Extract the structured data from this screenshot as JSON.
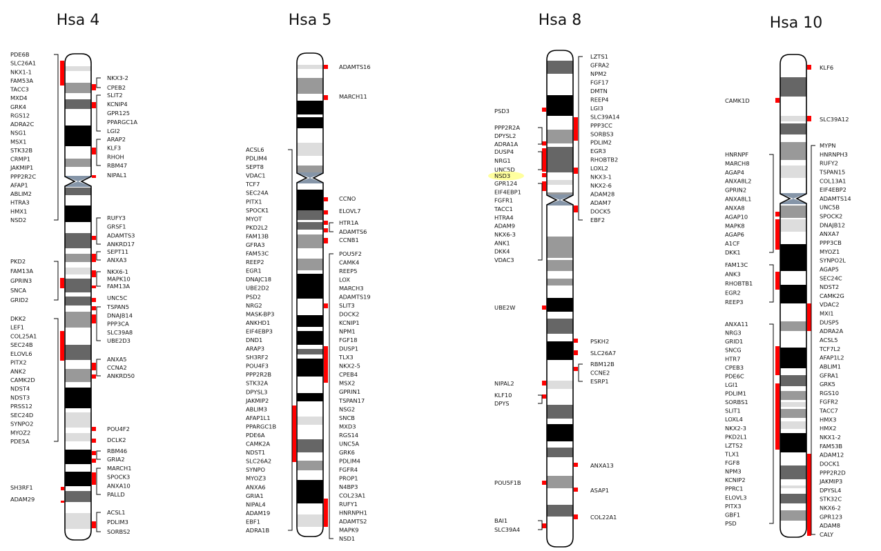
{
  "colors": {
    "band_black": "#000000",
    "band_dark": "#666666",
    "band_medium": "#999999",
    "band_light": "#dddddd",
    "centromere": "#8595a8",
    "marker": "#ff0000",
    "highlight": "#ffff9e"
  },
  "highlighted_gene": "NSD3",
  "chromosomes": [
    {
      "title": "Hsa 4",
      "left_groups": [
        {
          "genes": [
            "PDE6B",
            "SLC26A1",
            "NKX1-1",
            "FAM53A",
            "TACC3",
            "MXD4",
            "GRK4",
            "RGS12",
            "ADRA2C",
            "NSG1",
            "MSX1",
            "STK32B",
            "CRMP1",
            "JAKMIP1",
            "PPP2R2C",
            "AFAP1",
            "ABLIM2",
            "HTRA3",
            "HMX1",
            "NSD2"
          ]
        },
        {
          "genes": [
            "PKD2",
            "FAM13A",
            "GPRIN3",
            "SNCA",
            "GRID2"
          ]
        },
        {
          "genes": [
            "DKK2",
            "LEF1",
            "COL25A1",
            "SEC24B",
            "ELOVL6",
            "PITX2",
            "ANK2",
            "CAMK2D",
            "NDST4",
            "NDST3",
            "PRSS12",
            "SEC24D",
            "SYNPO2",
            "MYOZ2",
            "PDE5A"
          ]
        },
        {
          "genes": [
            "SH3RF1"
          ]
        },
        {
          "genes": [
            "ADAM29"
          ]
        }
      ],
      "right_groups": [
        {
          "genes": [
            "NKX3-2",
            "CPEB2"
          ]
        },
        {
          "genes": [
            "SLIT2",
            "KCNIP4",
            "GPR125",
            "PPARGC1A",
            "LGI2"
          ]
        },
        {
          "genes": [
            "ARAP2",
            "KLF3",
            "RHOH",
            "RBM47"
          ]
        },
        {
          "genes": [
            "NIPAL1"
          ]
        },
        {
          "genes": [
            "RUFY3",
            "GRSF1",
            "ADAMTS3",
            "ANKRD17"
          ]
        },
        {
          "genes": [
            "SEPT11",
            "ANXA3"
          ]
        },
        {
          "genes": [
            "NKX6-1",
            "MAPK10",
            "FAM13A"
          ]
        },
        {
          "genes": [
            "UNC5C"
          ]
        },
        {
          "genes": [
            "TSPAN5",
            "DNAJB14",
            "PPP3CA",
            "SLC39A8",
            "UBE2D3"
          ]
        },
        {
          "genes": [
            "ANXA5",
            "CCNA2",
            "ANKRD50"
          ]
        },
        {
          "genes": [
            "POU4F2"
          ]
        },
        {
          "genes": [
            "DCLK2"
          ]
        },
        {
          "genes": [
            "RBM46",
            "GRIA2"
          ]
        },
        {
          "genes": [
            "MARCH1",
            "SPOCK3",
            "ANXA10",
            "PALLD"
          ]
        },
        {
          "genes": [
            "ACSL1",
            "PDLIM3",
            "SORBS2"
          ]
        }
      ]
    },
    {
      "title": "Hsa 5",
      "left_groups": [
        {
          "genes": [
            "ACSL6",
            "PDLIM4",
            "SEPT8",
            "VDAC1",
            "TCF7",
            "SEC24A",
            "PITX1",
            "SPOCK1",
            "MYOT",
            "PKD2L2",
            "FAM13B",
            "GFRA3",
            "FAM53C",
            "REEP2",
            "EGR1",
            "DNAJC18",
            "UBE2D2",
            "PSD2",
            "NRG2",
            "MASK-BP3",
            "ANKHD1",
            "EIF4EBP3",
            "DND1",
            "ARAP3",
            "SH3RF2",
            "POU4F3",
            "PPP2R2B",
            "STK32A",
            "DPYSL3",
            "JAKMIP2",
            "ABLIM3",
            "AFAP1L1",
            "PPARGC1B",
            "PDE6A",
            "CAMK2A",
            "NDST1",
            "SLC26A2",
            "SYNPO",
            "MYOZ3",
            "ANXA6",
            "GRIA1",
            "NIPAL4",
            "ADAM19",
            "EBF1",
            "ADRA1B"
          ]
        }
      ],
      "right_groups": [
        {
          "genes": [
            "ADAMTS16"
          ]
        },
        {
          "genes": [
            "MARCH11"
          ]
        },
        {
          "genes": [
            "CCNO"
          ]
        },
        {
          "genes": [
            "ELOVL7"
          ]
        },
        {
          "genes": [
            "HTR1A",
            "ADAMTS6"
          ]
        },
        {
          "genes": [
            "CCNB1"
          ]
        },
        {
          "genes": [
            "POU5F2",
            "CAMK4",
            "REEP5",
            "LOX",
            "MARCH3",
            "ADAMTS19",
            "SLIT3",
            "DOCK2",
            "KCNIP1",
            "NPM1",
            "FGF18",
            "DUSP1",
            "TLX3",
            "NKX2-5",
            "CPEB4",
            "MSX2",
            "GPRIN1",
            "TSPAN17",
            "NSG2",
            "SNCB",
            "MXD3",
            "RGS14",
            "UNC5A",
            "GRK6",
            "PDLIM4",
            "FGFR4",
            "PROP1",
            "N4BP3",
            "COL23A1",
            "RUFY1",
            "HNRNPH1",
            "ADAMTS2",
            "MAPK9",
            "NSD1"
          ]
        }
      ]
    },
    {
      "title": "Hsa 8",
      "left_groups": [
        {
          "genes": [
            "PSD3"
          ]
        },
        {
          "genes": [
            "PPP2R2A",
            "DPYSL2",
            "ADRA1A"
          ]
        },
        {
          "genes": [
            "DUSP4",
            "NRG1",
            "UNC5D"
          ]
        },
        {
          "genes": [
            "NSD3"
          ]
        },
        {
          "genes": [
            "GPR124",
            "EIF4EBP1",
            "FGFR1",
            "TACC1",
            "HTRA4",
            "ADAM9",
            "NKX6-3",
            "ANK1",
            "DKK4",
            "VDAC3"
          ]
        },
        {
          "genes": [
            "UBE2W"
          ]
        },
        {
          "genes": [
            "NIPAL2"
          ]
        },
        {
          "genes": [
            "KLF10",
            "DPYS"
          ]
        },
        {
          "genes": [
            "POU5F1B"
          ]
        },
        {
          "genes": [
            "BAI1",
            "SLC39A4"
          ]
        }
      ],
      "right_groups": [
        {
          "genes": [
            "LZTS1",
            "GFRA2",
            "NPM2",
            "FGF17",
            "DMTN",
            "REEP4",
            "LGI3",
            "SLC39A14",
            "PPP3CC",
            "SORBS3",
            "PDLIM2",
            "EGR3",
            "RHOBTB2",
            "LOXL2",
            "NKX3-1",
            "NKX2-6",
            "ADAM28",
            "ADAM7",
            "DOCK5",
            "EBF2"
          ]
        },
        {
          "genes": [
            "PSKH2"
          ]
        },
        {
          "genes": [
            "SLC26A7"
          ]
        },
        {
          "genes": [
            "RBM12B",
            "CCNE2",
            "ESRP1"
          ]
        },
        {
          "genes": [
            "ANXA13"
          ]
        },
        {
          "genes": [
            "ASAP1"
          ]
        },
        {
          "genes": [
            "COL22A1"
          ]
        }
      ]
    },
    {
      "title": "Hsa 10",
      "left_groups": [
        {
          "genes": [
            "CAMK1D"
          ]
        },
        {
          "genes": [
            "HNRNPF",
            "MARCH8",
            "AGAP4",
            "ANXA8L2",
            "GPRIN2",
            "ANXA8L1",
            "ANXA8",
            "AGAP10",
            "MAPK8",
            "AGAP6",
            "A1CF",
            "DKK1"
          ]
        },
        {
          "genes": [
            "FAM13C",
            "ANK3",
            "RHOBTB1",
            "EGR2",
            "REEP3"
          ]
        },
        {
          "genes": [
            "ANXA11",
            "NRG3",
            "GRID1",
            "SNCG",
            "HTR7",
            "CPEB3",
            "PDE6C",
            "LGI1",
            "PDLIM1",
            "SORBS1",
            "SLIT1",
            "LOXL4",
            "NKX2-3",
            "PKD2L1",
            "LZTS2",
            "TLX1",
            "FGF8",
            "NPM3",
            "KCNIP2",
            "PPRC1",
            "ELOVL3",
            "PITX3",
            "GBF1",
            "PSD"
          ]
        }
      ],
      "right_groups": [
        {
          "genes": [
            "KLF6"
          ]
        },
        {
          "genes": [
            "SLC39A12"
          ]
        },
        {
          "genes": [
            "MYPN",
            "HNRNPH3",
            "RUFY2",
            "TSPAN15",
            "COL13A1",
            "EIF4EBP2",
            "ADAMTS14",
            "UNC5B",
            "SPOCK2",
            "DNAJB12",
            "ANXA7",
            "PPP3CB",
            "MYOZ1",
            "SYNPO2L",
            "AGAP5",
            "SEC24C",
            "NDST2",
            "CAMK2G",
            "VDAC2",
            "MXI1",
            "DUSP5",
            "ADRA2A",
            "ACSL5",
            "TCF7L2",
            "AFAP1L2",
            "ABLIM1",
            "GFRA1",
            "GRK5",
            "RGS10",
            "FGFR2",
            "TACC7",
            "HMX3",
            "HMX2",
            "NKX1-2",
            "FAM53B",
            "ADAM12",
            "DOCK1",
            "PPP2R2D",
            "JAKMIP3",
            "DPYSL4",
            "STK32C",
            "NKX6-2",
            "GPR123",
            "ADAM8",
            "CALY"
          ]
        }
      ]
    }
  ]
}
